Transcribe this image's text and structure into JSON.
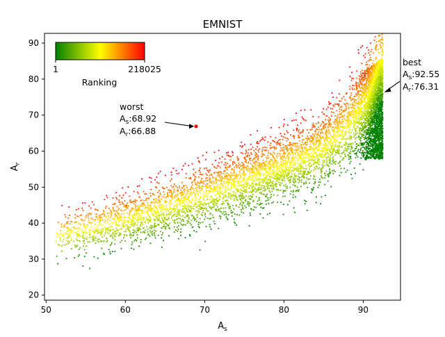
{
  "chart_data": {
    "type": "scatter",
    "title": "EMNIST",
    "xlabel": "A",
    "xlabel_sub": "s",
    "ylabel": "A",
    "ylabel_sub": "r",
    "xlim": [
      49.8,
      94.7
    ],
    "ylim": [
      18.6,
      92.7
    ],
    "xticks": [
      50,
      60,
      70,
      80,
      90
    ],
    "yticks": [
      20,
      30,
      40,
      50,
      60,
      70,
      80,
      90
    ],
    "grid": false,
    "point_count_shown": 218025,
    "colormap": [
      "#008000",
      "#ffff00",
      "#ff0000"
    ],
    "colorbar": {
      "label": "Ranking",
      "min_label": "1",
      "max_label": "218025",
      "placement": "top-left"
    },
    "annotations": [
      {
        "name": "worst",
        "label": "worst",
        "line1_prefix": "A",
        "line1_sub": "s",
        "line1_value": ":68.92",
        "line2_prefix": "A",
        "line2_sub": "r",
        "line2_value": ":66.88",
        "x": 68.92,
        "y": 66.88
      },
      {
        "name": "best",
        "label": "best",
        "line1_prefix": "A",
        "line1_sub": "s",
        "line1_value": ":92.55",
        "line2_prefix": "A",
        "line2_sub": "r",
        "line2_value": ":76.31",
        "x": 92.55,
        "y": 76.31
      }
    ]
  }
}
